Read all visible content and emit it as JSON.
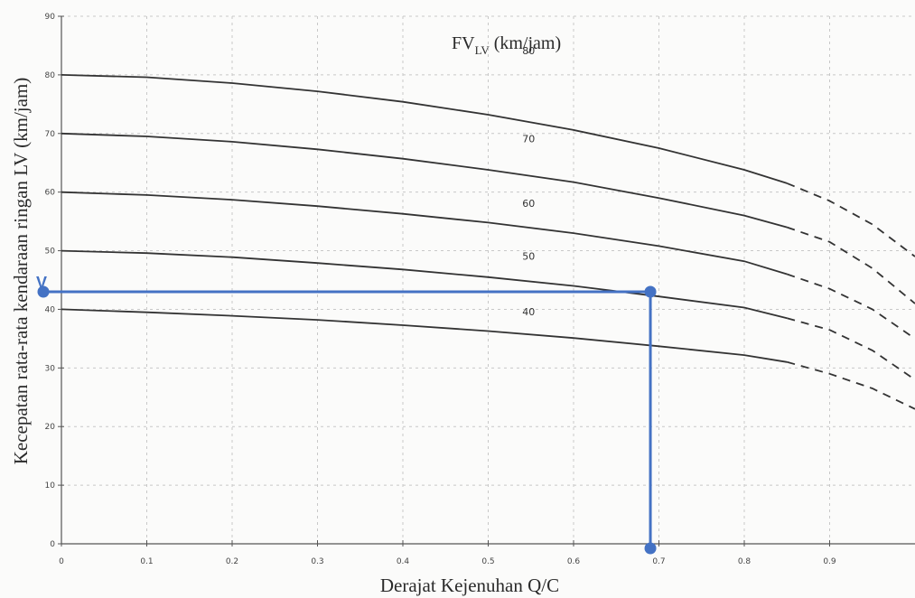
{
  "chart_data": {
    "type": "line",
    "xlabel": "Derajat Kejenuhan Q/C",
    "ylabel": "Kecepatan rata-rata kendaraan ringan LV (km/jam)",
    "legend_title": "FV",
    "legend_title_sub": "LV",
    "legend_title_unit": " (km/jam)",
    "xlim": [
      0,
      1.0
    ],
    "ylim": [
      0,
      90
    ],
    "x_ticks": [
      "0",
      "0.1",
      "0.2",
      "0.3",
      "0.4",
      "0.5",
      "0.6",
      "0.7",
      "0.8",
      "0.9"
    ],
    "y_ticks": [
      "0",
      "10",
      "20",
      "30",
      "40",
      "50",
      "60",
      "70",
      "80",
      "90"
    ],
    "grid": true,
    "series": [
      {
        "name": "80",
        "label_at": [
          0.54,
          83.5
        ],
        "solid": [
          [
            0,
            80
          ],
          [
            0.1,
            79.6
          ],
          [
            0.2,
            78.6
          ],
          [
            0.3,
            77.2
          ],
          [
            0.4,
            75.4
          ],
          [
            0.5,
            73.2
          ],
          [
            0.6,
            70.6
          ],
          [
            0.7,
            67.5
          ],
          [
            0.8,
            63.8
          ],
          [
            0.85,
            61.5
          ]
        ],
        "dashed": [
          [
            0.85,
            61.5
          ],
          [
            0.9,
            58.5
          ],
          [
            0.95,
            54.5
          ],
          [
            1.0,
            49.0
          ]
        ]
      },
      {
        "name": "70",
        "label_at": [
          0.54,
          68.5
        ],
        "solid": [
          [
            0,
            70
          ],
          [
            0.1,
            69.5
          ],
          [
            0.2,
            68.6
          ],
          [
            0.3,
            67.3
          ],
          [
            0.4,
            65.7
          ],
          [
            0.5,
            63.8
          ],
          [
            0.6,
            61.7
          ],
          [
            0.7,
            59.0
          ],
          [
            0.8,
            56.0
          ],
          [
            0.85,
            54.0
          ]
        ],
        "dashed": [
          [
            0.85,
            54.0
          ],
          [
            0.9,
            51.5
          ],
          [
            0.95,
            47.0
          ],
          [
            1.0,
            41.0
          ]
        ]
      },
      {
        "name": "60",
        "label_at": [
          0.54,
          57.5
        ],
        "solid": [
          [
            0,
            60
          ],
          [
            0.1,
            59.5
          ],
          [
            0.2,
            58.7
          ],
          [
            0.3,
            57.6
          ],
          [
            0.4,
            56.3
          ],
          [
            0.5,
            54.8
          ],
          [
            0.6,
            53.0
          ],
          [
            0.7,
            50.8
          ],
          [
            0.8,
            48.2
          ],
          [
            0.85,
            46.0
          ]
        ],
        "dashed": [
          [
            0.85,
            46.0
          ],
          [
            0.9,
            43.5
          ],
          [
            0.95,
            40.0
          ],
          [
            1.0,
            35.0
          ]
        ]
      },
      {
        "name": "50",
        "label_at": [
          0.54,
          48.5
        ],
        "solid": [
          [
            0,
            50
          ],
          [
            0.1,
            49.6
          ],
          [
            0.2,
            48.9
          ],
          [
            0.3,
            47.9
          ],
          [
            0.4,
            46.8
          ],
          [
            0.5,
            45.5
          ],
          [
            0.6,
            44.0
          ],
          [
            0.7,
            42.2
          ],
          [
            0.8,
            40.3
          ],
          [
            0.85,
            38.5
          ]
        ],
        "dashed": [
          [
            0.85,
            38.5
          ],
          [
            0.9,
            36.5
          ],
          [
            0.95,
            33.0
          ],
          [
            1.0,
            28.0
          ]
        ]
      },
      {
        "name": "40",
        "label_at": [
          0.54,
          39.0
        ],
        "solid": [
          [
            0,
            40
          ],
          [
            0.1,
            39.5
          ],
          [
            0.2,
            38.9
          ],
          [
            0.3,
            38.2
          ],
          [
            0.4,
            37.3
          ],
          [
            0.5,
            36.3
          ],
          [
            0.6,
            35.1
          ],
          [
            0.7,
            33.7
          ],
          [
            0.8,
            32.2
          ],
          [
            0.85,
            31.0
          ]
        ],
        "dashed": [
          [
            0.85,
            31.0
          ],
          [
            0.9,
            29.0
          ],
          [
            0.95,
            26.5
          ],
          [
            1.0,
            23.0
          ]
        ]
      }
    ],
    "annotation": {
      "letter": "V",
      "x": 0.69,
      "y": 43.0,
      "color": "#4472c4"
    }
  }
}
